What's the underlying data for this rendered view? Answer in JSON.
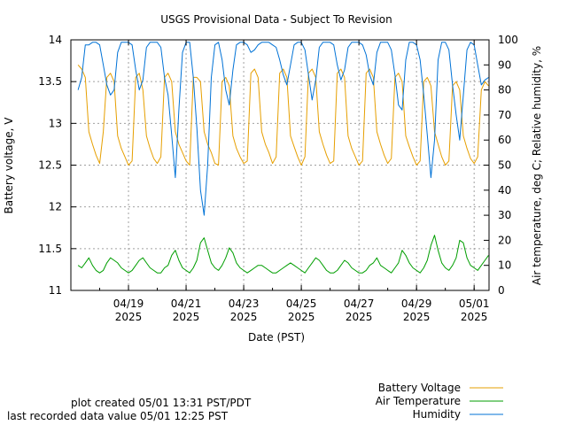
{
  "chart_data": {
    "type": "line",
    "title": "USGS Provisional Data - Subject To Revision",
    "xlabel": "Date (PST)",
    "ylabel_left": "Battery voltage, V",
    "ylabel_right": "Air temperature, deg C; Relative humidity, %",
    "x_range": [
      "2025-04-17T00:00",
      "2025-05-01T12:25"
    ],
    "x_ticks": [
      {
        "date": "2025-04-19",
        "line1": "04/19",
        "line2": "2025"
      },
      {
        "date": "2025-04-21",
        "line1": "04/21",
        "line2": "2025"
      },
      {
        "date": "2025-04-23",
        "line1": "04/23",
        "line2": "2025"
      },
      {
        "date": "2025-04-25",
        "line1": "04/25",
        "line2": "2025"
      },
      {
        "date": "2025-04-27",
        "line1": "04/27",
        "line2": "2025"
      },
      {
        "date": "2025-04-29",
        "line1": "04/29",
        "line2": "2025"
      },
      {
        "date": "2025-05-01",
        "line1": "05/01",
        "line2": "2025"
      }
    ],
    "y_left_range": [
      11,
      14
    ],
    "y_left_ticks": [
      "11",
      "11.5",
      "12",
      "12.5",
      "13",
      "13.5",
      "14"
    ],
    "y_right_range": [
      0,
      100
    ],
    "y_right_ticks": [
      "0",
      "10",
      "20",
      "30",
      "40",
      "50",
      "60",
      "70",
      "80",
      "90",
      "100"
    ],
    "grid": true,
    "legend_position": "bottom-right",
    "series": [
      {
        "name": "Battery Voltage",
        "axis": "left",
        "color": "#e69f00",
        "x": [
          "2025-04-17T06:00",
          "2025-04-17T09:00",
          "2025-04-17T12:00",
          "2025-04-17T15:00",
          "2025-04-17T18:00",
          "2025-04-17T21:00",
          "2025-04-18T00:00",
          "2025-04-18T03:00",
          "2025-04-18T06:00",
          "2025-04-18T09:00",
          "2025-04-18T12:00",
          "2025-04-18T15:00",
          "2025-04-18T18:00",
          "2025-04-18T21:00",
          "2025-04-19T00:00",
          "2025-04-19T03:00",
          "2025-04-19T06:00",
          "2025-04-19T09:00",
          "2025-04-19T12:00",
          "2025-04-19T15:00",
          "2025-04-19T18:00",
          "2025-04-19T21:00",
          "2025-04-20T00:00",
          "2025-04-20T03:00",
          "2025-04-20T06:00",
          "2025-04-20T09:00",
          "2025-04-20T12:00",
          "2025-04-20T15:00",
          "2025-04-20T18:00",
          "2025-04-20T21:00",
          "2025-04-21T00:00",
          "2025-04-21T03:00",
          "2025-04-21T06:00",
          "2025-04-21T09:00",
          "2025-04-21T12:00",
          "2025-04-21T15:00",
          "2025-04-21T18:00",
          "2025-04-21T21:00",
          "2025-04-22T00:00",
          "2025-04-22T03:00",
          "2025-04-22T06:00",
          "2025-04-22T09:00",
          "2025-04-22T12:00",
          "2025-04-22T15:00",
          "2025-04-22T18:00",
          "2025-04-22T21:00",
          "2025-04-23T00:00",
          "2025-04-23T03:00",
          "2025-04-23T06:00",
          "2025-04-23T09:00",
          "2025-04-23T12:00",
          "2025-04-23T15:00",
          "2025-04-23T18:00",
          "2025-04-23T21:00",
          "2025-04-24T00:00",
          "2025-04-24T03:00",
          "2025-04-24T06:00",
          "2025-04-24T09:00",
          "2025-04-24T12:00",
          "2025-04-24T15:00",
          "2025-04-24T18:00",
          "2025-04-24T21:00",
          "2025-04-25T00:00",
          "2025-04-25T03:00",
          "2025-04-25T06:00",
          "2025-04-25T09:00",
          "2025-04-25T12:00",
          "2025-04-25T15:00",
          "2025-04-25T18:00",
          "2025-04-25T21:00",
          "2025-04-26T00:00",
          "2025-04-26T03:00",
          "2025-04-26T06:00",
          "2025-04-26T09:00",
          "2025-04-26T12:00",
          "2025-04-26T15:00",
          "2025-04-26T18:00",
          "2025-04-26T21:00",
          "2025-04-27T00:00",
          "2025-04-27T03:00",
          "2025-04-27T06:00",
          "2025-04-27T09:00",
          "2025-04-27T12:00",
          "2025-04-27T15:00",
          "2025-04-27T18:00",
          "2025-04-27T21:00",
          "2025-04-28T00:00",
          "2025-04-28T03:00",
          "2025-04-28T06:00",
          "2025-04-28T09:00",
          "2025-04-28T12:00",
          "2025-04-28T15:00",
          "2025-04-28T18:00",
          "2025-04-28T21:00",
          "2025-04-29T00:00",
          "2025-04-29T03:00",
          "2025-04-29T06:00",
          "2025-04-29T09:00",
          "2025-04-29T12:00",
          "2025-04-29T15:00",
          "2025-04-29T18:00",
          "2025-04-29T21:00",
          "2025-04-30T00:00",
          "2025-04-30T03:00",
          "2025-04-30T06:00",
          "2025-04-30T09:00",
          "2025-04-30T12:00",
          "2025-04-30T15:00",
          "2025-04-30T18:00",
          "2025-04-30T21:00",
          "2025-05-01T00:00",
          "2025-05-01T03:00",
          "2025-05-01T06:00",
          "2025-05-01T09:00",
          "2025-05-01T12:00"
        ],
        "values": [
          13.7,
          13.65,
          13.55,
          12.9,
          12.75,
          12.62,
          12.52,
          12.9,
          13.55,
          13.6,
          13.5,
          12.85,
          12.7,
          12.6,
          12.5,
          12.55,
          13.55,
          13.6,
          13.4,
          12.85,
          12.7,
          12.58,
          12.52,
          12.6,
          13.55,
          13.6,
          13.5,
          12.9,
          12.75,
          12.65,
          12.55,
          12.5,
          13.55,
          13.55,
          13.5,
          12.9,
          12.75,
          12.65,
          12.52,
          12.5,
          13.5,
          13.55,
          13.45,
          12.85,
          12.7,
          12.6,
          12.52,
          12.55,
          13.6,
          13.65,
          13.55,
          12.9,
          12.75,
          12.65,
          12.52,
          12.6,
          13.6,
          13.65,
          13.55,
          12.85,
          12.72,
          12.6,
          12.5,
          12.6,
          13.6,
          13.65,
          13.55,
          12.9,
          12.75,
          12.62,
          12.52,
          12.55,
          13.6,
          13.65,
          13.55,
          12.85,
          12.7,
          12.6,
          12.5,
          12.55,
          13.6,
          13.65,
          13.55,
          12.9,
          12.75,
          12.62,
          12.52,
          12.58,
          13.55,
          13.6,
          13.5,
          12.85,
          12.72,
          12.6,
          12.5,
          12.55,
          13.5,
          13.55,
          13.45,
          12.9,
          12.75,
          12.6,
          12.5,
          12.55,
          13.45,
          13.5,
          13.4,
          12.85,
          12.7,
          12.58,
          12.52,
          12.6,
          13.4,
          13.5,
          13.45
        ]
      },
      {
        "name": "Air Temperature",
        "axis": "right",
        "color": "#009e00",
        "x": [
          "2025-04-17T06:00",
          "2025-04-17T09:00",
          "2025-04-17T12:00",
          "2025-04-17T15:00",
          "2025-04-17T18:00",
          "2025-04-17T21:00",
          "2025-04-18T00:00",
          "2025-04-18T03:00",
          "2025-04-18T06:00",
          "2025-04-18T09:00",
          "2025-04-18T12:00",
          "2025-04-18T15:00",
          "2025-04-18T18:00",
          "2025-04-18T21:00",
          "2025-04-19T00:00",
          "2025-04-19T03:00",
          "2025-04-19T06:00",
          "2025-04-19T09:00",
          "2025-04-19T12:00",
          "2025-04-19T15:00",
          "2025-04-19T18:00",
          "2025-04-19T21:00",
          "2025-04-20T00:00",
          "2025-04-20T03:00",
          "2025-04-20T06:00",
          "2025-04-20T09:00",
          "2025-04-20T12:00",
          "2025-04-20T15:00",
          "2025-04-20T18:00",
          "2025-04-20T21:00",
          "2025-04-21T00:00",
          "2025-04-21T03:00",
          "2025-04-21T06:00",
          "2025-04-21T09:00",
          "2025-04-21T12:00",
          "2025-04-21T15:00",
          "2025-04-21T18:00",
          "2025-04-21T21:00",
          "2025-04-22T00:00",
          "2025-04-22T03:00",
          "2025-04-22T06:00",
          "2025-04-22T09:00",
          "2025-04-22T12:00",
          "2025-04-22T15:00",
          "2025-04-22T18:00",
          "2025-04-22T21:00",
          "2025-04-23T00:00",
          "2025-04-23T03:00",
          "2025-04-23T06:00",
          "2025-04-23T09:00",
          "2025-04-23T12:00",
          "2025-04-23T15:00",
          "2025-04-23T18:00",
          "2025-04-23T21:00",
          "2025-04-24T00:00",
          "2025-04-24T03:00",
          "2025-04-24T06:00",
          "2025-04-24T09:00",
          "2025-04-24T12:00",
          "2025-04-24T15:00",
          "2025-04-24T18:00",
          "2025-04-24T21:00",
          "2025-04-25T00:00",
          "2025-04-25T03:00",
          "2025-04-25T06:00",
          "2025-04-25T09:00",
          "2025-04-25T12:00",
          "2025-04-25T15:00",
          "2025-04-25T18:00",
          "2025-04-25T21:00",
          "2025-04-26T00:00",
          "2025-04-26T03:00",
          "2025-04-26T06:00",
          "2025-04-26T09:00",
          "2025-04-26T12:00",
          "2025-04-26T15:00",
          "2025-04-26T18:00",
          "2025-04-26T21:00",
          "2025-04-27T00:00",
          "2025-04-27T03:00",
          "2025-04-27T06:00",
          "2025-04-27T09:00",
          "2025-04-27T12:00",
          "2025-04-27T15:00",
          "2025-04-27T18:00",
          "2025-04-27T21:00",
          "2025-04-28T00:00",
          "2025-04-28T03:00",
          "2025-04-28T06:00",
          "2025-04-28T09:00",
          "2025-04-28T12:00",
          "2025-04-28T15:00",
          "2025-04-28T18:00",
          "2025-04-28T21:00",
          "2025-04-29T00:00",
          "2025-04-29T03:00",
          "2025-04-29T06:00",
          "2025-04-29T09:00",
          "2025-04-29T12:00",
          "2025-04-29T15:00",
          "2025-04-29T18:00",
          "2025-04-29T21:00",
          "2025-04-30T00:00",
          "2025-04-30T03:00",
          "2025-04-30T06:00",
          "2025-04-30T09:00",
          "2025-04-30T12:00",
          "2025-04-30T15:00",
          "2025-04-30T18:00",
          "2025-04-30T21:00",
          "2025-05-01T00:00",
          "2025-05-01T03:00",
          "2025-05-01T06:00",
          "2025-05-01T09:00",
          "2025-05-01T12:00"
        ],
        "values": [
          10,
          9,
          11,
          13,
          10,
          8,
          7,
          8,
          11,
          13,
          12,
          11,
          9,
          8,
          7,
          8,
          10,
          12,
          13,
          11,
          9,
          8,
          7,
          7,
          9,
          10,
          14,
          16,
          12,
          9,
          8,
          7,
          9,
          12,
          19,
          21,
          16,
          11,
          9,
          8,
          10,
          13,
          17,
          15,
          11,
          9,
          8,
          7,
          8,
          9,
          10,
          10,
          9,
          8,
          7,
          7,
          8,
          9,
          10,
          11,
          10,
          9,
          8,
          7,
          9,
          11,
          13,
          12,
          10,
          8,
          7,
          7,
          8,
          10,
          12,
          11,
          9,
          8,
          7,
          7,
          8,
          10,
          11,
          13,
          10,
          9,
          8,
          7,
          9,
          11,
          16,
          14,
          11,
          9,
          8,
          7,
          9,
          12,
          18,
          22,
          16,
          11,
          9,
          8,
          10,
          13,
          20,
          19,
          13,
          10,
          9,
          8,
          10,
          12,
          14
        ]
      },
      {
        "name": "Humidity",
        "axis": "right",
        "color": "#0072d6",
        "x": [
          "2025-04-17T06:00",
          "2025-04-17T09:00",
          "2025-04-17T12:00",
          "2025-04-17T15:00",
          "2025-04-17T18:00",
          "2025-04-17T21:00",
          "2025-04-18T00:00",
          "2025-04-18T03:00",
          "2025-04-18T06:00",
          "2025-04-18T09:00",
          "2025-04-18T12:00",
          "2025-04-18T15:00",
          "2025-04-18T18:00",
          "2025-04-18T21:00",
          "2025-04-19T00:00",
          "2025-04-19T03:00",
          "2025-04-19T06:00",
          "2025-04-19T09:00",
          "2025-04-19T12:00",
          "2025-04-19T15:00",
          "2025-04-19T18:00",
          "2025-04-19T21:00",
          "2025-04-20T00:00",
          "2025-04-20T03:00",
          "2025-04-20T06:00",
          "2025-04-20T09:00",
          "2025-04-20T12:00",
          "2025-04-20T15:00",
          "2025-04-20T18:00",
          "2025-04-20T21:00",
          "2025-04-21T00:00",
          "2025-04-21T03:00",
          "2025-04-21T06:00",
          "2025-04-21T09:00",
          "2025-04-21T12:00",
          "2025-04-21T15:00",
          "2025-04-21T18:00",
          "2025-04-21T21:00",
          "2025-04-22T00:00",
          "2025-04-22T03:00",
          "2025-04-22T06:00",
          "2025-04-22T09:00",
          "2025-04-22T12:00",
          "2025-04-22T15:00",
          "2025-04-22T18:00",
          "2025-04-22T21:00",
          "2025-04-23T00:00",
          "2025-04-23T03:00",
          "2025-04-23T06:00",
          "2025-04-23T09:00",
          "2025-04-23T12:00",
          "2025-04-23T15:00",
          "2025-04-23T18:00",
          "2025-04-23T21:00",
          "2025-04-24T00:00",
          "2025-04-24T03:00",
          "2025-04-24T06:00",
          "2025-04-24T09:00",
          "2025-04-24T12:00",
          "2025-04-24T15:00",
          "2025-04-24T18:00",
          "2025-04-24T21:00",
          "2025-04-25T00:00",
          "2025-04-25T03:00",
          "2025-04-25T06:00",
          "2025-04-25T09:00",
          "2025-04-25T12:00",
          "2025-04-25T15:00",
          "2025-04-25T18:00",
          "2025-04-25T21:00",
          "2025-04-26T00:00",
          "2025-04-26T03:00",
          "2025-04-26T06:00",
          "2025-04-26T09:00",
          "2025-04-26T12:00",
          "2025-04-26T15:00",
          "2025-04-26T18:00",
          "2025-04-26T21:00",
          "2025-04-27T00:00",
          "2025-04-27T03:00",
          "2025-04-27T06:00",
          "2025-04-27T09:00",
          "2025-04-27T12:00",
          "2025-04-27T15:00",
          "2025-04-27T18:00",
          "2025-04-27T21:00",
          "2025-04-28T00:00",
          "2025-04-28T03:00",
          "2025-04-28T06:00",
          "2025-04-28T09:00",
          "2025-04-28T12:00",
          "2025-04-28T15:00",
          "2025-04-28T18:00",
          "2025-04-28T21:00",
          "2025-04-29T00:00",
          "2025-04-29T03:00",
          "2025-04-29T06:00",
          "2025-04-29T09:00",
          "2025-04-29T12:00",
          "2025-04-29T15:00",
          "2025-04-29T18:00",
          "2025-04-29T21:00",
          "2025-04-30T00:00",
          "2025-04-30T03:00",
          "2025-04-30T06:00",
          "2025-04-30T09:00",
          "2025-04-30T12:00",
          "2025-04-30T15:00",
          "2025-04-30T18:00",
          "2025-04-30T21:00",
          "2025-05-01T00:00",
          "2025-05-01T03:00",
          "2025-05-01T06:00",
          "2025-05-01T09:00",
          "2025-05-01T12:00"
        ],
        "values": [
          80,
          85,
          98,
          98,
          99,
          99,
          98,
          90,
          82,
          78,
          80,
          95,
          99,
          99,
          99,
          98,
          88,
          80,
          84,
          97,
          99,
          99,
          99,
          97,
          85,
          78,
          62,
          45,
          72,
          95,
          99,
          99,
          85,
          65,
          40,
          30,
          50,
          85,
          98,
          99,
          92,
          80,
          74,
          88,
          98,
          99,
          99,
          98,
          95,
          96,
          98,
          99,
          99,
          99,
          98,
          97,
          92,
          86,
          82,
          90,
          98,
          99,
          99,
          96,
          86,
          76,
          84,
          97,
          99,
          99,
          99,
          98,
          90,
          84,
          88,
          97,
          99,
          99,
          99,
          98,
          94,
          86,
          82,
          95,
          99,
          99,
          99,
          96,
          86,
          74,
          72,
          92,
          99,
          99,
          98,
          92,
          78,
          62,
          45,
          60,
          92,
          99,
          99,
          96,
          82,
          70,
          60,
          78,
          96,
          99,
          98,
          90,
          82,
          84,
          85
        ]
      }
    ]
  },
  "footer": {
    "plot_created": "plot created 05/01 13:31 PST/PDT",
    "last_value": "last recorded data value 05/01 12:25 PST"
  }
}
